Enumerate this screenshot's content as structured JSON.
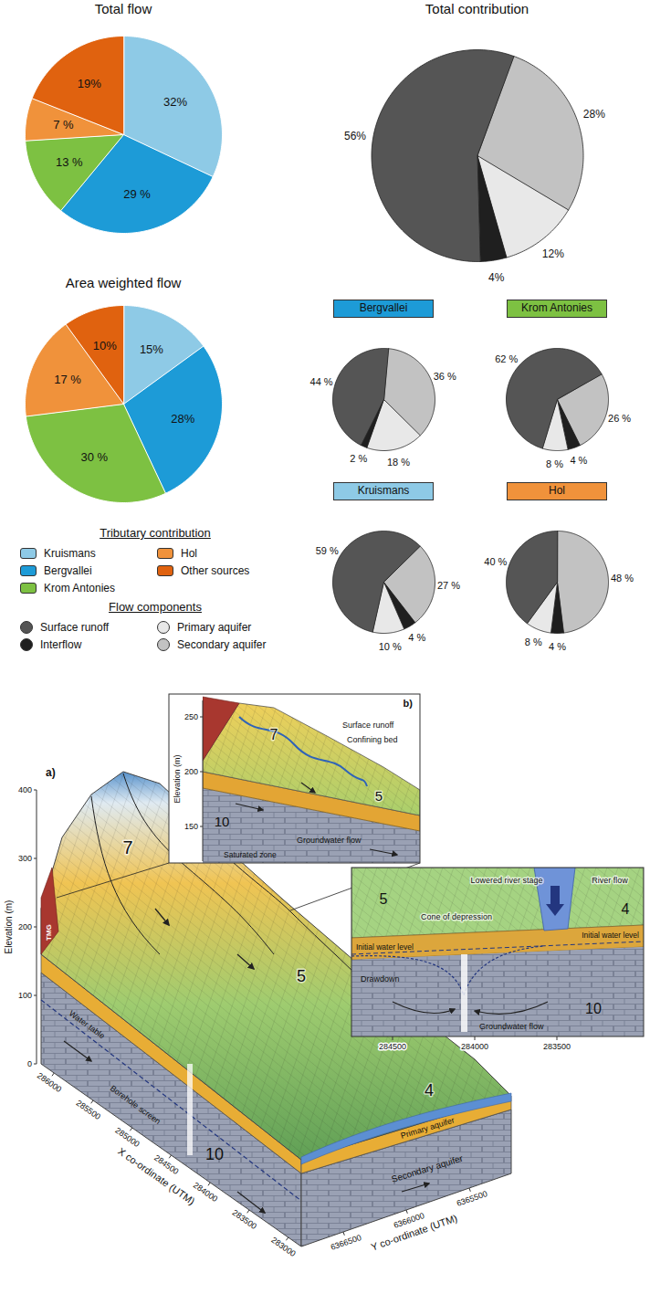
{
  "chart_data": [
    {
      "type": "pie",
      "title": "Total flow",
      "categories": [
        "Kruismans",
        "Bergvallei",
        "Krom Antonies",
        "Hol",
        "Other sources"
      ],
      "values": [
        32,
        29,
        13,
        7,
        19
      ],
      "value_labels": [
        "32%",
        "29 %",
        "13 %",
        "7 %",
        "19%"
      ],
      "colors": [
        "#8ecae6",
        "#1d9bd7",
        "#7dc142",
        "#f0923b",
        "#e0620f"
      ],
      "data_labels": true
    },
    {
      "type": "pie",
      "title": "Total contribution",
      "categories": [
        "Secondary aquifer",
        "Primary aquifer",
        "Interflow",
        "Surface runoff"
      ],
      "values": [
        28,
        12,
        4,
        56
      ],
      "value_labels": [
        "28%",
        "12%",
        "4%",
        "56%"
      ],
      "colors": [
        "#c2c2c2",
        "#e8e8e8",
        "#1f1f1f",
        "#555555"
      ],
      "data_labels": true
    },
    {
      "type": "pie",
      "title": "Area weighted flow",
      "categories": [
        "Kruismans",
        "Bergvallei",
        "Krom Antonies",
        "Hol",
        "Other sources"
      ],
      "values": [
        15,
        28,
        30,
        17,
        10
      ],
      "value_labels": [
        "15%",
        "28%",
        "30 %",
        "17 %",
        "10%"
      ],
      "colors": [
        "#8ecae6",
        "#1d9bd7",
        "#7dc142",
        "#f0923b",
        "#e0620f"
      ],
      "data_labels": true
    },
    {
      "type": "pie",
      "title": "Bergvallei",
      "categories": [
        "Secondary aquifer",
        "Primary aquifer",
        "Interflow",
        "Surface runoff"
      ],
      "values": [
        36,
        18,
        2,
        44
      ],
      "value_labels": [
        "36 %",
        "18 %",
        "2 %",
        "44 %"
      ],
      "colors": [
        "#c2c2c2",
        "#e8e8e8",
        "#1f1f1f",
        "#555555"
      ],
      "data_labels": true
    },
    {
      "type": "pie",
      "title": "Krom Antonies",
      "categories": [
        "Secondary aquifer",
        "Interflow",
        "Primary aquifer",
        "Surface runoff"
      ],
      "values": [
        26,
        4,
        8,
        62
      ],
      "value_labels": [
        "26 %",
        "4 %",
        "8 %",
        "62 %"
      ],
      "colors": [
        "#c2c2c2",
        "#1f1f1f",
        "#e8e8e8",
        "#555555"
      ],
      "data_labels": true
    },
    {
      "type": "pie",
      "title": "Kruismans",
      "categories": [
        "Secondary aquifer",
        "Interflow",
        "Primary aquifer",
        "Surface runoff"
      ],
      "values": [
        27,
        4,
        10,
        59
      ],
      "value_labels": [
        "27 %",
        "4 %",
        "10 %",
        "59 %"
      ],
      "colors": [
        "#c2c2c2",
        "#1f1f1f",
        "#e8e8e8",
        "#555555"
      ],
      "data_labels": true
    },
    {
      "type": "pie",
      "title": "Hol",
      "categories": [
        "Secondary aquifer",
        "Interflow",
        "Primary aquifer",
        "Surface runoff"
      ],
      "values": [
        48,
        4,
        8,
        40
      ],
      "value_labels": [
        "48 %",
        "4 %",
        "8 %",
        "40 %"
      ],
      "colors": [
        "#c2c2c2",
        "#1f1f1f",
        "#e8e8e8",
        "#555555"
      ],
      "data_labels": true
    }
  ],
  "legend": {
    "groups": [
      {
        "title": "Tributary contribution",
        "items": [
          {
            "label": "Kruismans",
            "color": "#8ecae6"
          },
          {
            "label": "Bergvallei",
            "color": "#1d9bd7"
          },
          {
            "label": "Krom Antonies",
            "color": "#7dc142"
          },
          {
            "label": "Hol",
            "color": "#f0923b"
          },
          {
            "label": "Other sources",
            "color": "#e0620f"
          }
        ]
      },
      {
        "title": "Flow components",
        "items": [
          {
            "label": "Surface runoff",
            "color": "#555555"
          },
          {
            "label": "Interflow",
            "color": "#1f1f1f"
          },
          {
            "label": "Primary aquifer",
            "color": "#e8e8e8"
          },
          {
            "label": "Secondary aquifer",
            "color": "#c2c2c2"
          }
        ]
      }
    ]
  },
  "diagram": {
    "a": {
      "label": "a)",
      "elevation_title": "Elevation (m)",
      "elevation_ticks": [
        0,
        100,
        200,
        300,
        400
      ],
      "x_title": "X co-ordinate (UTM)",
      "x_ticks": [
        286000,
        285500,
        285000,
        284500,
        284000,
        283500,
        283000
      ],
      "y_title": "Y co-ordinate (UTM)",
      "y_ticks": [
        6366500,
        6366000,
        6365500
      ],
      "units": {
        "upper": "7",
        "middle": "5",
        "lower": "4",
        "base": "10",
        "cap": "TMG"
      },
      "texts": {
        "water_table": "Water table",
        "borehole": "Borehole screen",
        "primary": "Primary aquifer",
        "secondary": "Secondary aquifer"
      }
    },
    "b": {
      "label": "b)",
      "elevation_title": "Elevation (m)",
      "elevation_ticks": [
        150,
        200,
        250
      ],
      "units": {
        "upper": "7",
        "middle": "5",
        "base": "10"
      },
      "texts": {
        "runoff": "Surface runoff",
        "confining": "Confining bed",
        "flow": "Groundwater flow",
        "saturated": "Saturated zone"
      }
    },
    "c": {
      "x_ticks": [
        284500,
        284000,
        283500
      ],
      "units": {
        "middle": "5",
        "lower": "4",
        "base": "10"
      },
      "texts": {
        "river_stage": "Lowered river stage",
        "river_flow": "River flow",
        "cone": "Cone of depression",
        "initial_left": "Initial water level",
        "initial_right": "Initial water level",
        "drawdown": "Drawdown",
        "flow": "Groundwater flow"
      }
    }
  }
}
